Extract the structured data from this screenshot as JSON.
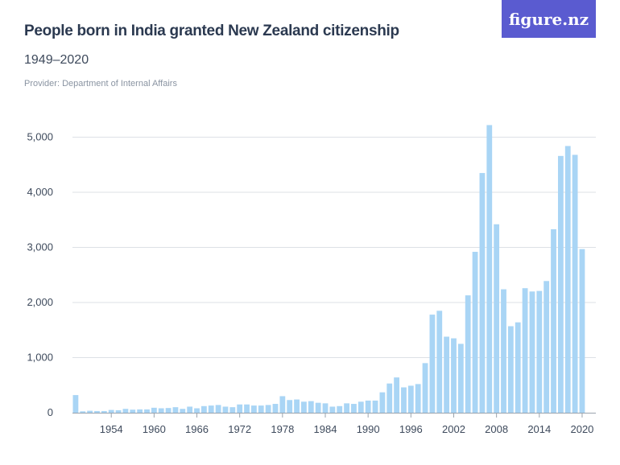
{
  "header": {
    "title": "People born in India granted New Zealand citizenship",
    "subtitle": "1949–2020",
    "provider": "Provider: Department of Internal Affairs",
    "logo_text": "figure.nz"
  },
  "colors": {
    "bar": "#a9d5f5",
    "grid": "#dde1e6",
    "axis": "#9aa3ad",
    "logo_bg": "#5a5bd0"
  },
  "chart_data": {
    "type": "bar",
    "title": "People born in India granted New Zealand citizenship",
    "subtitle": "1949–2020",
    "xlabel": "",
    "ylabel": "",
    "ylim": [
      0,
      5250
    ],
    "y_ticks": [
      0,
      1000,
      2000,
      3000,
      4000,
      5000
    ],
    "y_tick_labels": [
      "0",
      "1,000",
      "2,000",
      "3,000",
      "4,000",
      "5,000"
    ],
    "x_tick_labels": [
      "1954",
      "1960",
      "1966",
      "1972",
      "1978",
      "1984",
      "1990",
      "1996",
      "2002",
      "2008",
      "2014",
      "2020"
    ],
    "grid": true,
    "legend": "none",
    "categories": [
      1949,
      1950,
      1951,
      1952,
      1953,
      1954,
      1955,
      1956,
      1957,
      1958,
      1959,
      1960,
      1961,
      1962,
      1963,
      1964,
      1965,
      1966,
      1967,
      1968,
      1969,
      1970,
      1971,
      1972,
      1973,
      1974,
      1975,
      1976,
      1977,
      1978,
      1979,
      1980,
      1981,
      1982,
      1983,
      1984,
      1985,
      1986,
      1987,
      1988,
      1989,
      1990,
      1991,
      1992,
      1993,
      1994,
      1995,
      1996,
      1997,
      1998,
      1999,
      2000,
      2001,
      2002,
      2003,
      2004,
      2005,
      2006,
      2007,
      2008,
      2009,
      2010,
      2011,
      2012,
      2013,
      2014,
      2015,
      2016,
      2017,
      2018,
      2019,
      2020
    ],
    "values": [
      320,
      25,
      35,
      30,
      30,
      50,
      45,
      70,
      55,
      60,
      60,
      90,
      80,
      85,
      100,
      70,
      110,
      80,
      120,
      130,
      140,
      110,
      100,
      150,
      150,
      130,
      130,
      140,
      160,
      300,
      230,
      240,
      200,
      210,
      180,
      170,
      110,
      120,
      170,
      160,
      200,
      220,
      220,
      370,
      530,
      640,
      460,
      490,
      520,
      900,
      1780,
      1850,
      1380,
      1350,
      1250,
      2130,
      2920,
      4350,
      5220,
      3420,
      2240,
      1570,
      1640,
      2260,
      2200,
      2210,
      2390,
      3330,
      4660,
      4840,
      4680,
      2970
    ]
  }
}
